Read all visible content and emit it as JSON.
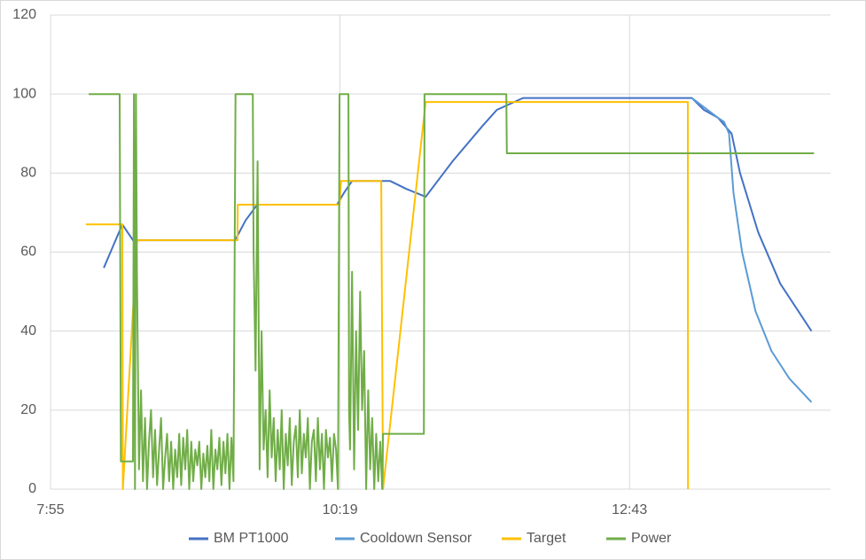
{
  "chart_data": {
    "type": "line",
    "xlim": [
      475,
      863
    ],
    "xticks": [
      {
        "value": 475,
        "label": "7:55"
      },
      {
        "value": 619,
        "label": "10:19"
      },
      {
        "value": 763,
        "label": "12:43"
      }
    ],
    "ylim": [
      0,
      120
    ],
    "yticks": [
      0,
      20,
      40,
      60,
      80,
      100,
      120
    ],
    "grid": true,
    "legend": "bottom",
    "series": [
      {
        "name": "BM PT1000",
        "color": "#4472c4",
        "x": [
          501.5,
          510.7,
          516,
          566.8,
          572,
          577.8,
          617.5,
          621,
          625,
          644,
          652,
          661.6,
          675,
          690,
          697,
          710,
          794,
          800,
          807,
          813.8,
          818,
          827,
          838,
          853.5
        ],
        "values": [
          56,
          67,
          63,
          63,
          68,
          72,
          72,
          75,
          78,
          78,
          76,
          74,
          83,
          92,
          96,
          99,
          99,
          96,
          94,
          90,
          80,
          65,
          52,
          40
        ]
      },
      {
        "name": "Cooldown Sensor",
        "color": "#5b9bd5",
        "x": [
          794,
          807,
          810,
          812.5,
          814.7,
          819,
          825.7,
          833.6,
          842.5,
          853.5
        ],
        "values": [
          99,
          94,
          93,
          90,
          75,
          60,
          45,
          35,
          28,
          22
        ]
      },
      {
        "name": "Target",
        "color": "#ffc000",
        "x": [
          492.6,
          510.7,
          511,
          518,
          568,
          568.1,
          618.8,
          619.5,
          639.5,
          640.4,
          661.6,
          792,
          792.1
        ],
        "values": [
          67,
          67,
          0,
          63,
          63,
          72,
          72,
          78,
          78,
          0,
          98,
          98,
          0
        ]
      },
      {
        "name": "Power",
        "color": "#70ad47",
        "x": [
          494,
          509.4,
          510,
          516,
          516.5,
          517,
          517.5,
          518,
          519,
          520,
          521,
          522,
          523,
          524,
          525,
          526,
          527,
          528,
          529,
          530,
          531,
          532,
          533,
          534,
          535,
          536,
          537,
          538,
          539,
          540,
          541,
          542,
          543,
          544,
          545,
          546,
          547,
          548,
          549,
          550,
          551,
          552,
          553,
          554,
          555,
          556,
          557,
          558,
          559,
          560,
          561,
          562,
          563,
          564,
          565,
          566,
          567,
          575.6,
          576,
          577,
          578,
          579,
          580,
          581,
          582,
          583,
          584,
          585,
          586,
          587,
          588,
          589,
          590,
          591,
          592,
          593,
          594,
          595,
          596,
          597,
          598,
          599,
          600,
          601,
          602,
          603,
          604,
          605,
          606,
          607,
          608,
          609,
          610,
          611,
          612,
          613,
          614,
          615,
          616,
          617,
          618,
          618.8,
          623.2,
          623.5,
          624,
          625,
          626,
          627,
          628,
          629,
          630,
          631,
          632,
          633,
          634,
          635,
          636,
          637,
          638,
          639,
          640,
          640.4,
          660.7,
          661,
          701.7,
          702,
          854.8
        ],
        "values": [
          100,
          100,
          7,
          7,
          100,
          0,
          100,
          55,
          5,
          25,
          2,
          18,
          0,
          12,
          20,
          3,
          15,
          1,
          10,
          18,
          0,
          8,
          14,
          2,
          12,
          0,
          10,
          3,
          14,
          1,
          13,
          5,
          15,
          0,
          12,
          2,
          10,
          6,
          12,
          0,
          9,
          3,
          11,
          2,
          15,
          0,
          10,
          5,
          13,
          1,
          12,
          4,
          14,
          0,
          13,
          2,
          100,
          100,
          60,
          30,
          83,
          5,
          40,
          10,
          20,
          3,
          25,
          8,
          18,
          2,
          15,
          5,
          20,
          0,
          14,
          6,
          18,
          1,
          12,
          16,
          3,
          20,
          4,
          14,
          8,
          18,
          0,
          12,
          15,
          2,
          18,
          5,
          14,
          0,
          15,
          8,
          13,
          2,
          14,
          10,
          0,
          100,
          100,
          20,
          10,
          55,
          5,
          40,
          15,
          50,
          20,
          35,
          0,
          25,
          5,
          18,
          0,
          14,
          2,
          12,
          0,
          14,
          14,
          100,
          100,
          85,
          85
        ]
      }
    ]
  }
}
